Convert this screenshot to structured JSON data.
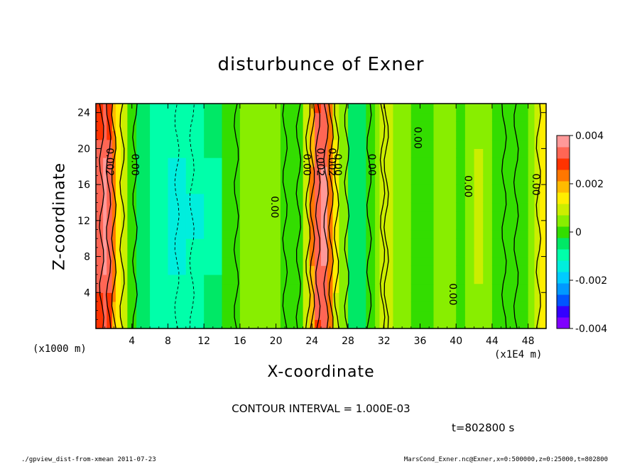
{
  "chart_data": {
    "type": "heatmap",
    "title": "disturbunce of Exner",
    "xlabel": "X-coordinate",
    "ylabel": "Z-coordinate",
    "x_unit_label": "(x1000 m)",
    "x_unit_label_2": "(x1E4 m)",
    "xlim": [
      0,
      50
    ],
    "ylim": [
      0,
      25
    ],
    "xticks": [
      "4",
      "8",
      "12",
      "16",
      "20",
      "24",
      "28",
      "32",
      "36",
      "40",
      "44",
      "48"
    ],
    "yticks": [
      "4",
      "8",
      "12",
      "16",
      "20",
      "24"
    ],
    "colorbar": {
      "range": [
        -0.004,
        0.004
      ],
      "tick_labels": [
        "0.004",
        "0.002",
        "0",
        "-0.002",
        "-0.004"
      ],
      "colors": [
        "#7f00ff",
        "#3300ff",
        "#0055ff",
        "#0099ff",
        "#00ccff",
        "#00eedd",
        "#00ffaa",
        "#00e866",
        "#33dd00",
        "#88ee00",
        "#ccee00",
        "#ffee00",
        "#ffbb00",
        "#ff7700",
        "#ff3300",
        "#ff6655",
        "#ff9999"
      ]
    },
    "columns_x": [
      0,
      0.8,
      1.2,
      1.8,
      2.2,
      2.8,
      3.5,
      4.5,
      6,
      8,
      10,
      12,
      14,
      16,
      17.5,
      18.5,
      19.5,
      20.5,
      22,
      23,
      23.7,
      24.3,
      25,
      25.7,
      26.3,
      27,
      28,
      29,
      30,
      31,
      31.5,
      32,
      32.5,
      33,
      34,
      35,
      36,
      37.5,
      39,
      40,
      41,
      42,
      43,
      44,
      45,
      46,
      47,
      48,
      48.7,
      49.3,
      50
    ],
    "columns_value": [
      0.0026,
      0.0031,
      0.0033,
      0.0024,
      0.0016,
      0.0011,
      0.0005,
      -0.0001,
      -0.0005,
      -0.0009,
      -0.0011,
      -0.0008,
      -0.0004,
      0.0001,
      0.0004,
      0.0006,
      0.0005,
      0.0001,
      -0.0002,
      0.0002,
      0.0012,
      0.0026,
      0.0034,
      0.0029,
      0.0016,
      0.0006,
      -0.0001,
      -0.0004,
      -0.0002,
      0.0004,
      0.0008,
      0.0011,
      0.0009,
      0.0006,
      0.0003,
      0.0002,
      0.0001,
      0.0002,
      0.0004,
      0.0002,
      0.0002,
      0.0005,
      0.0008,
      0.0003,
      0.0001,
      -0.0002,
      0.0001,
      0.0003,
      0.0007,
      0.0011,
      0.0014
    ],
    "contour_interval_label": "CONTOUR INTERVAL = 1.000E-03",
    "contour_labels": [
      {
        "text": "0.002",
        "x": 1.5,
        "y": 18.5
      },
      {
        "text": "0.00",
        "x": 4.3,
        "y": 18.2
      },
      {
        "text": "0.00",
        "x": 19.8,
        "y": 13.5
      },
      {
        "text": "0.00",
        "x": 23.4,
        "y": 18.2
      },
      {
        "text": "0.002",
        "x": 24.9,
        "y": 18.5
      },
      {
        "text": "0.002",
        "x": 26.2,
        "y": 18.5
      },
      {
        "text": "0.00",
        "x": 26.8,
        "y": 18.2
      },
      {
        "text": "0.00",
        "x": 30.6,
        "y": 18.2
      },
      {
        "text": "0.00",
        "x": 35.7,
        "y": 21.2
      },
      {
        "text": "0.00",
        "x": 39.6,
        "y": 3.8
      },
      {
        "text": "0.00",
        "x": 41.3,
        "y": 15.8
      },
      {
        "text": "0.00",
        "x": 48.8,
        "y": 16.0
      }
    ]
  },
  "time_label": "t=802800 s",
  "footer_left": "./gpview_dist-from-xmean  2011-07-23",
  "footer_right": "MarsCond_Exner.nc@Exner,x=0:500000,z=0:25000,t=802800"
}
